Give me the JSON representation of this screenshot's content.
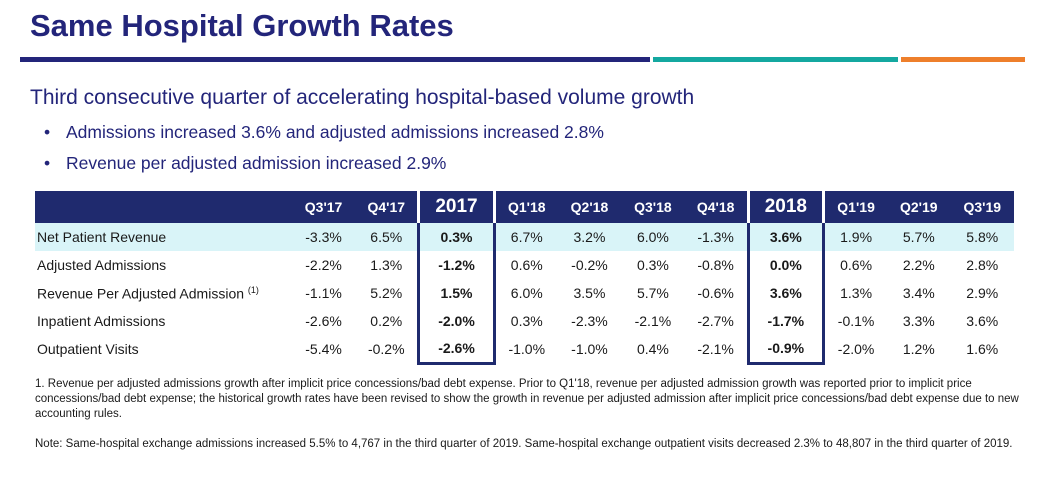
{
  "title": "Same Hospital Growth Rates",
  "subtitle": "Third consecutive quarter of accelerating hospital-based volume growth",
  "bullets": [
    "Admissions increased 3.6% and adjusted admissions increased 2.8%",
    "Revenue per adjusted admission increased 2.9%"
  ],
  "bullet_glyph": "•",
  "colors": {
    "navy": "#23257a",
    "teal": "#14a8a0",
    "orange": "#ee7f2b",
    "header_bg": "#1f2a6e",
    "highlight": "#d9f4f8"
  },
  "table": {
    "columns": [
      "Q3'17",
      "Q4'17",
      "2017",
      "Q1'18",
      "Q2'18",
      "Q3'18",
      "Q4'18",
      "2018",
      "Q1'19",
      "Q2'19",
      "Q3'19"
    ],
    "rows": [
      {
        "label": "Net Patient Revenue",
        "footnote": "",
        "values": [
          "-3.3%",
          "6.5%",
          "0.3%",
          "6.7%",
          "3.2%",
          "6.0%",
          "-1.3%",
          "3.6%",
          "1.9%",
          "5.7%",
          "5.8%"
        ]
      },
      {
        "label": "Adjusted Admissions",
        "footnote": "",
        "values": [
          "-2.2%",
          "1.3%",
          "-1.2%",
          "0.6%",
          "-0.2%",
          "0.3%",
          "-0.8%",
          "0.0%",
          "0.6%",
          "2.2%",
          "2.8%"
        ]
      },
      {
        "label": "Revenue Per Adjusted Admission",
        "footnote": "(1)",
        "values": [
          "-1.1%",
          "5.2%",
          "1.5%",
          "6.0%",
          "3.5%",
          "5.7%",
          "-0.6%",
          "3.6%",
          "1.3%",
          "3.4%",
          "2.9%"
        ]
      },
      {
        "label": "Inpatient Admissions",
        "footnote": "",
        "values": [
          "-2.6%",
          "0.2%",
          "-2.0%",
          "0.3%",
          "-2.3%",
          "-2.1%",
          "-2.7%",
          "-1.7%",
          "-0.1%",
          "3.3%",
          "3.6%"
        ]
      },
      {
        "label": "Outpatient Visits",
        "footnote": "",
        "values": [
          "-5.4%",
          "-0.2%",
          "-2.6%",
          "-1.0%",
          "-1.0%",
          "0.4%",
          "-2.1%",
          "-0.9%",
          "-2.0%",
          "1.2%",
          "1.6%"
        ]
      }
    ]
  },
  "footnote1": "1. Revenue per adjusted admissions growth after implicit price concessions/bad debt expense.  Prior to Q1'18, revenue per adjusted admission growth was reported prior to implicit price concessions/bad debt expense; the historical growth rates have been revised to show the growth in revenue per adjusted admission after implicit price concessions/bad debt expense due to new accounting rules.",
  "note": "Note: Same-hospital exchange admissions increased 5.5% to 4,767 in the third quarter of 2019.  Same-hospital exchange outpatient visits decreased 2.3% to 48,807 in the third quarter of 2019."
}
